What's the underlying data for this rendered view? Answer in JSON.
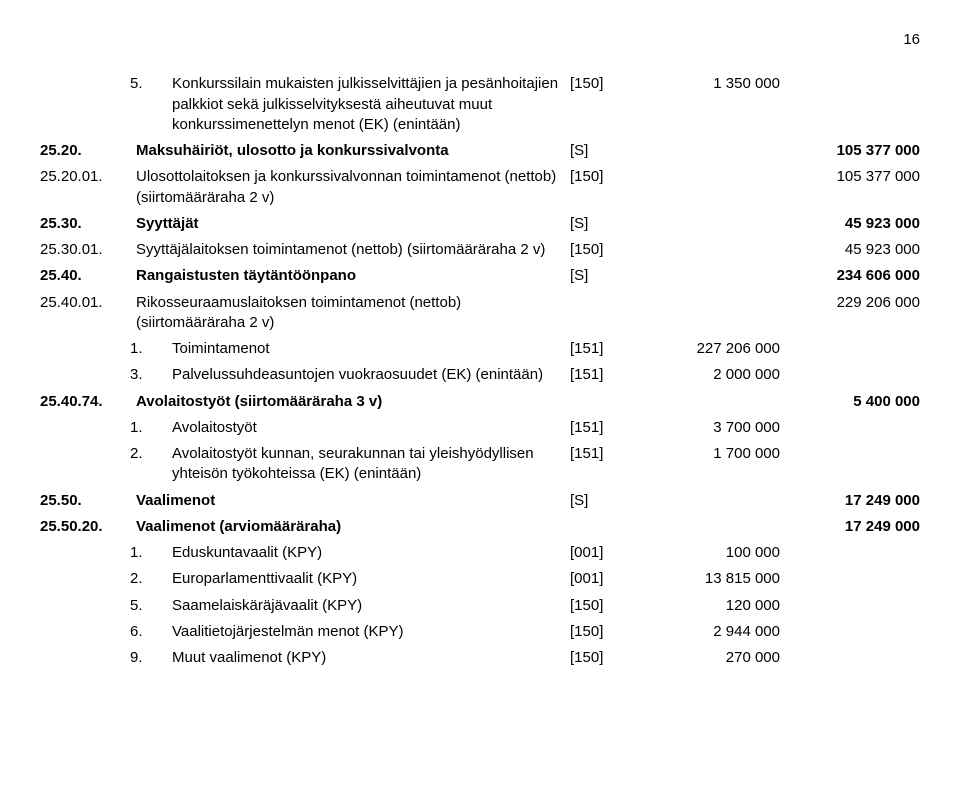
{
  "page_number": "16",
  "rows": [
    {
      "lvl": 1,
      "num": "5.",
      "text": "Konkurssilain mukaisten julkisselvittäjien ja pesänhoitajien palkkiot sekä julkisselvityksestä aiheutuvat muut konkurssimenettelyn menot (EK) (enintään)",
      "bracket": "[150]",
      "v1": "1 350 000",
      "v2": "",
      "bold": false
    },
    {
      "lvl": 0,
      "num": "25.20.",
      "text": "Maksuhäiriöt, ulosotto ja konkurssivalvonta",
      "bracket": "[S]",
      "v1": "",
      "v2": "105 377 000",
      "bold": true
    },
    {
      "lvl": 0,
      "num": "25.20.01.",
      "text": "Ulosottolaitoksen ja konkurssivalvonnan toimintamenot (nettob) (siirtomääräraha 2 v)",
      "bracket": "[150]",
      "v1": "",
      "v2": "105 377 000",
      "bold": false
    },
    {
      "lvl": 0,
      "num": "25.30.",
      "text": "Syyttäjät",
      "bracket": "[S]",
      "v1": "",
      "v2": "45 923 000",
      "bold": true
    },
    {
      "lvl": 0,
      "num": "25.30.01.",
      "text": "Syyttäjälaitoksen toimintamenot (nettob) (siirtomääräraha 2 v)",
      "bracket": "[150]",
      "v1": "",
      "v2": "45 923 000",
      "bold": false
    },
    {
      "lvl": 0,
      "num": "25.40.",
      "text": "Rangaistusten täytäntöönpano",
      "bracket": "[S]",
      "v1": "",
      "v2": "234 606 000",
      "bold": true
    },
    {
      "lvl": 0,
      "num": "25.40.01.",
      "text": "Rikosseuraamuslaitoksen toimintamenot (nettob) (siirtomääräraha 2 v)",
      "bracket": "",
      "v1": "",
      "v2": "229 206 000",
      "bold": false
    },
    {
      "lvl": 1,
      "num": "1.",
      "text": "Toimintamenot",
      "bracket": "[151]",
      "v1": "227 206 000",
      "v2": "",
      "bold": false
    },
    {
      "lvl": 1,
      "num": "3.",
      "text": "Palvelussuhdeasuntojen vuokraosuudet (EK) (enintään)",
      "bracket": "[151]",
      "v1": "2 000 000",
      "v2": "",
      "bold": false
    },
    {
      "lvl": 0,
      "num": "25.40.74.",
      "text": "Avolaitostyöt (siirtomääräraha 3 v)",
      "bracket": "",
      "v1": "",
      "v2": "5 400 000",
      "bold": true
    },
    {
      "lvl": 1,
      "num": "1.",
      "text": "Avolaitostyöt",
      "bracket": "[151]",
      "v1": "3 700 000",
      "v2": "",
      "bold": false
    },
    {
      "lvl": 1,
      "num": "2.",
      "text": "Avolaitostyöt kunnan, seurakunnan tai yleishyödyllisen yhteisön työkohteissa (EK) (enintään)",
      "bracket": "[151]",
      "v1": "1 700 000",
      "v2": "",
      "bold": false
    },
    {
      "lvl": 0,
      "num": "25.50.",
      "text": "Vaalimenot",
      "bracket": "[S]",
      "v1": "",
      "v2": "17 249 000",
      "bold": true
    },
    {
      "lvl": 0,
      "num": "25.50.20.",
      "text": "Vaalimenot (arviomääräraha)",
      "bracket": "",
      "v1": "",
      "v2": "17 249 000",
      "bold": true
    },
    {
      "lvl": 1,
      "num": "1.",
      "text": "Eduskuntavaalit (KPY)",
      "bracket": "[001]",
      "v1": "100 000",
      "v2": "",
      "bold": false
    },
    {
      "lvl": 1,
      "num": "2.",
      "text": "Europarlamenttivaalit (KPY)",
      "bracket": "[001]",
      "v1": "13 815 000",
      "v2": "",
      "bold": false
    },
    {
      "lvl": 1,
      "num": "5.",
      "text": "Saamelaiskäräjävaalit (KPY)",
      "bracket": "[150]",
      "v1": "120 000",
      "v2": "",
      "bold": false
    },
    {
      "lvl": 1,
      "num": "6.",
      "text": "Vaalitietojärjestelmän menot (KPY)",
      "bracket": "[150]",
      "v1": "2 944 000",
      "v2": "",
      "bold": false
    },
    {
      "lvl": 1,
      "num": "9.",
      "text": "Muut vaalimenot (KPY)",
      "bracket": "[150]",
      "v1": "270 000",
      "v2": "",
      "bold": false
    }
  ]
}
